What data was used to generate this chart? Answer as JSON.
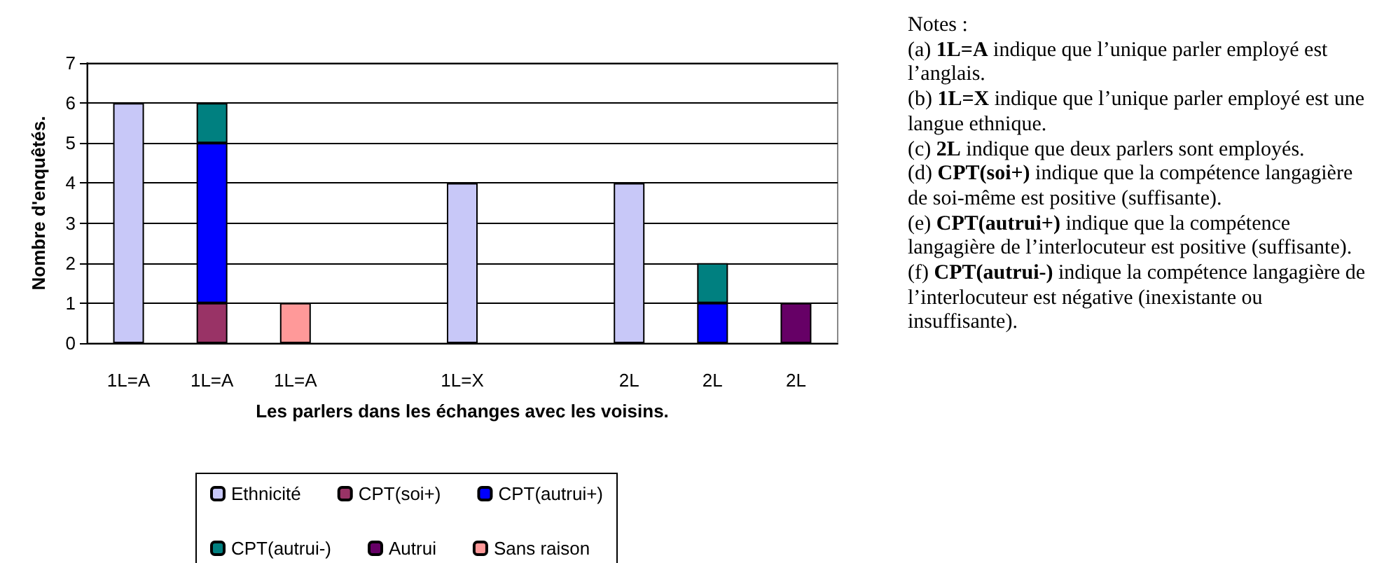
{
  "chart_data": {
    "type": "bar",
    "stacked": true,
    "xlabel": "Les parlers dans les échanges avec les voisins.",
    "ylabel": "Nombre d'enquêtés.",
    "categories": [
      "1L=A",
      "1L=A",
      "1L=A",
      null,
      "1L=X",
      null,
      "2L",
      "2L",
      "2L"
    ],
    "series": [
      {
        "name": "Ethnicité",
        "color": "#c8c8f8",
        "values": [
          6,
          null,
          null,
          null,
          4,
          null,
          4,
          null,
          null
        ]
      },
      {
        "name": "CPT(soi+)",
        "color": "#993366",
        "values": [
          null,
          1,
          null,
          null,
          null,
          null,
          null,
          null,
          null
        ]
      },
      {
        "name": "CPT(autrui+)",
        "color": "#0000ff",
        "values": [
          null,
          4,
          null,
          null,
          null,
          null,
          null,
          1,
          null
        ]
      },
      {
        "name": "CPT(autrui-)",
        "color": "#008080",
        "values": [
          null,
          1,
          null,
          null,
          null,
          null,
          null,
          1,
          null
        ]
      },
      {
        "name": "Autrui",
        "color": "#660066",
        "values": [
          null,
          null,
          null,
          null,
          null,
          null,
          null,
          null,
          1
        ]
      },
      {
        "name": "Sans raison",
        "color": "#ff9999",
        "values": [
          null,
          null,
          1,
          null,
          null,
          null,
          null,
          null,
          null
        ]
      }
    ],
    "ylim": [
      0,
      7
    ],
    "yticks": [
      0,
      1,
      2,
      3,
      4,
      5,
      6,
      7
    ],
    "grid": "y",
    "legend": "bottom",
    "annotations": [
      "Notes :",
      "(a) 1L=A indique que l’unique parler employé est l’anglais.",
      "(b) 1L=X indique que l’unique parler employé est une langue ethnique.",
      "(c) 2L indique que deux parlers sont employés.",
      "(d) CPT(soi+) indique que la compétence langagière de soi-même est positive (suffisante).",
      "(e) CPT(autrui+) indique que la compétence langagière de l’interlocuteur est positive (suffisante).",
      "(f) CPT(autrui-) indique la compétence langagière de l’interlocuteur est négative (inexistante ou insuffisante)."
    ]
  }
}
